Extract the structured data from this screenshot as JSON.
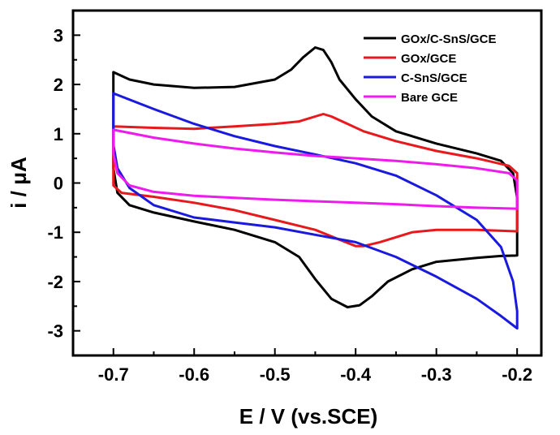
{
  "chart_data": {
    "type": "line",
    "title": "",
    "xlabel": "E / V (vs.SCE)",
    "ylabel": "i / μA",
    "xlim": [
      -0.75,
      -0.17
    ],
    "ylim": [
      -3.5,
      3.5
    ],
    "xticks": [
      -0.7,
      -0.6,
      -0.5,
      -0.4,
      -0.3,
      -0.2
    ],
    "xtick_labels": [
      "-0.7",
      "-0.6",
      "-0.5",
      "-0.4",
      "-0.3",
      "-0.2"
    ],
    "yticks": [
      -3,
      -2,
      -1,
      0,
      1,
      2,
      3
    ],
    "ytick_labels": [
      "-3",
      "-2",
      "-1",
      "0",
      "1",
      "2",
      "3"
    ],
    "grid": false,
    "legend_position": "top-right",
    "series": [
      {
        "name": "GOx/C-SnS/GCE",
        "color": "#000000",
        "points": [
          [
            -0.7,
            2.25
          ],
          [
            -0.68,
            2.1
          ],
          [
            -0.65,
            2.0
          ],
          [
            -0.6,
            1.93
          ],
          [
            -0.55,
            1.95
          ],
          [
            -0.5,
            2.1
          ],
          [
            -0.48,
            2.3
          ],
          [
            -0.465,
            2.55
          ],
          [
            -0.45,
            2.75
          ],
          [
            -0.44,
            2.7
          ],
          [
            -0.43,
            2.45
          ],
          [
            -0.42,
            2.1
          ],
          [
            -0.4,
            1.7
          ],
          [
            -0.38,
            1.35
          ],
          [
            -0.35,
            1.05
          ],
          [
            -0.3,
            0.8
          ],
          [
            -0.25,
            0.6
          ],
          [
            -0.22,
            0.45
          ],
          [
            -0.205,
            0.2
          ],
          [
            -0.2,
            -0.3
          ],
          [
            -0.2,
            -1.47
          ],
          [
            -0.22,
            -1.48
          ],
          [
            -0.25,
            -1.52
          ],
          [
            -0.3,
            -1.6
          ],
          [
            -0.33,
            -1.75
          ],
          [
            -0.36,
            -2.0
          ],
          [
            -0.38,
            -2.3
          ],
          [
            -0.395,
            -2.48
          ],
          [
            -0.41,
            -2.52
          ],
          [
            -0.43,
            -2.35
          ],
          [
            -0.45,
            -1.95
          ],
          [
            -0.47,
            -1.5
          ],
          [
            -0.5,
            -1.2
          ],
          [
            -0.55,
            -0.95
          ],
          [
            -0.6,
            -0.78
          ],
          [
            -0.65,
            -0.6
          ],
          [
            -0.68,
            -0.45
          ],
          [
            -0.695,
            -0.2
          ],
          [
            -0.7,
            0.3
          ],
          [
            -0.7,
            0.55
          ]
        ]
      },
      {
        "name": "GOx/GCE",
        "color": "#e8191c",
        "points": [
          [
            -0.7,
            1.15
          ],
          [
            -0.65,
            1.12
          ],
          [
            -0.6,
            1.1
          ],
          [
            -0.55,
            1.15
          ],
          [
            -0.5,
            1.2
          ],
          [
            -0.47,
            1.25
          ],
          [
            -0.45,
            1.35
          ],
          [
            -0.44,
            1.4
          ],
          [
            -0.43,
            1.35
          ],
          [
            -0.41,
            1.2
          ],
          [
            -0.39,
            1.05
          ],
          [
            -0.35,
            0.85
          ],
          [
            -0.3,
            0.65
          ],
          [
            -0.25,
            0.5
          ],
          [
            -0.21,
            0.35
          ],
          [
            -0.2,
            0.2
          ],
          [
            -0.2,
            -0.98
          ],
          [
            -0.25,
            -0.95
          ],
          [
            -0.3,
            -0.95
          ],
          [
            -0.33,
            -1.0
          ],
          [
            -0.35,
            -1.1
          ],
          [
            -0.37,
            -1.2
          ],
          [
            -0.39,
            -1.28
          ],
          [
            -0.4,
            -1.28
          ],
          [
            -0.42,
            -1.15
          ],
          [
            -0.45,
            -0.95
          ],
          [
            -0.5,
            -0.75
          ],
          [
            -0.55,
            -0.55
          ],
          [
            -0.6,
            -0.4
          ],
          [
            -0.65,
            -0.28
          ],
          [
            -0.69,
            -0.2
          ],
          [
            -0.7,
            -0.05
          ],
          [
            -0.7,
            0.15
          ]
        ]
      },
      {
        "name": "C-SnS/GCE",
        "color": "#1a1adf",
        "points": [
          [
            -0.7,
            1.82
          ],
          [
            -0.65,
            1.5
          ],
          [
            -0.6,
            1.2
          ],
          [
            -0.55,
            0.95
          ],
          [
            -0.5,
            0.75
          ],
          [
            -0.45,
            0.58
          ],
          [
            -0.4,
            0.4
          ],
          [
            -0.35,
            0.15
          ],
          [
            -0.3,
            -0.25
          ],
          [
            -0.25,
            -0.75
          ],
          [
            -0.22,
            -1.3
          ],
          [
            -0.205,
            -2.0
          ],
          [
            -0.2,
            -2.6
          ],
          [
            -0.2,
            -2.95
          ],
          [
            -0.22,
            -2.7
          ],
          [
            -0.25,
            -2.35
          ],
          [
            -0.3,
            -1.9
          ],
          [
            -0.35,
            -1.5
          ],
          [
            -0.4,
            -1.2
          ],
          [
            -0.45,
            -1.05
          ],
          [
            -0.5,
            -0.9
          ],
          [
            -0.55,
            -0.8
          ],
          [
            -0.6,
            -0.7
          ],
          [
            -0.65,
            -0.45
          ],
          [
            -0.68,
            -0.1
          ],
          [
            -0.695,
            0.3
          ],
          [
            -0.7,
            0.78
          ]
        ]
      },
      {
        "name": "Bare GCE",
        "color": "#ee1aee",
        "points": [
          [
            -0.7,
            1.08
          ],
          [
            -0.65,
            0.92
          ],
          [
            -0.6,
            0.8
          ],
          [
            -0.55,
            0.7
          ],
          [
            -0.5,
            0.62
          ],
          [
            -0.45,
            0.55
          ],
          [
            -0.4,
            0.5
          ],
          [
            -0.35,
            0.45
          ],
          [
            -0.3,
            0.38
          ],
          [
            -0.25,
            0.3
          ],
          [
            -0.21,
            0.2
          ],
          [
            -0.2,
            0.05
          ],
          [
            -0.2,
            -0.52
          ],
          [
            -0.25,
            -0.5
          ],
          [
            -0.3,
            -0.47
          ],
          [
            -0.35,
            -0.43
          ],
          [
            -0.4,
            -0.4
          ],
          [
            -0.45,
            -0.37
          ],
          [
            -0.5,
            -0.34
          ],
          [
            -0.55,
            -0.3
          ],
          [
            -0.6,
            -0.26
          ],
          [
            -0.65,
            -0.18
          ],
          [
            -0.68,
            -0.05
          ],
          [
            -0.695,
            0.2
          ],
          [
            -0.7,
            0.6
          ]
        ]
      }
    ]
  }
}
